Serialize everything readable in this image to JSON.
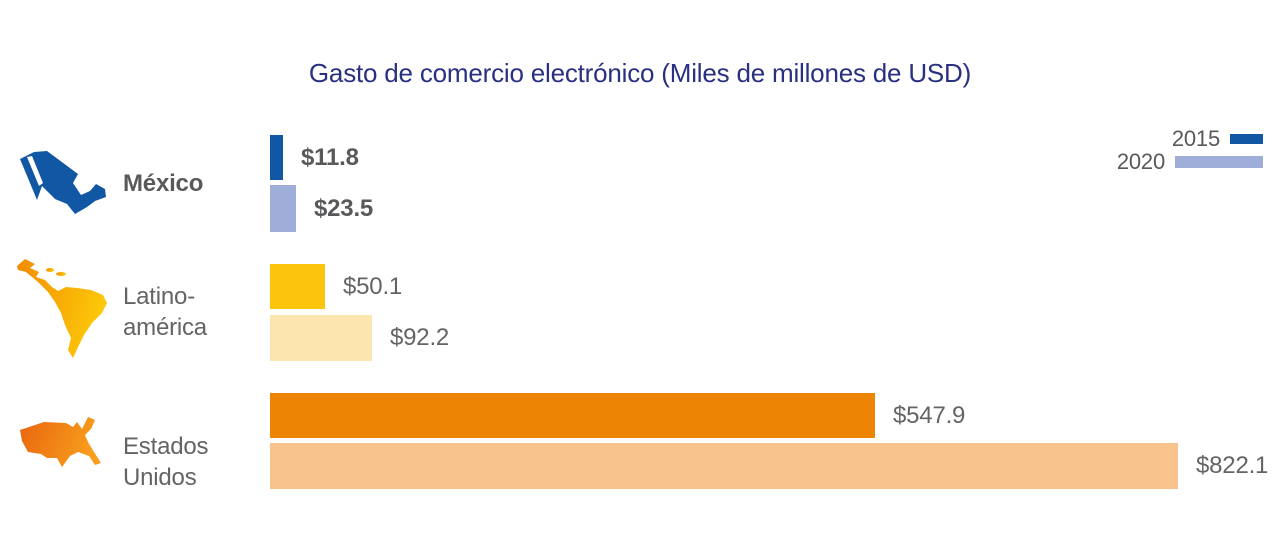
{
  "title": "Gasto de comercio electrónico (Miles de millones de USD)",
  "title_color": "#293180",
  "legend": [
    {
      "label": "2015",
      "color": "#1157A3"
    },
    {
      "label": "2020",
      "color": "#9FAED9"
    }
  ],
  "rows": [
    {
      "label_lines": [
        "México"
      ],
      "icon": "mexico-map"
    },
    {
      "label_lines": [
        "Latino-",
        "américa"
      ],
      "icon": "latam-map"
    },
    {
      "label_lines": [
        "Estados",
        "Unidos"
      ],
      "icon": "usa-map"
    }
  ],
  "chart_data": {
    "type": "bar",
    "orientation": "horizontal",
    "title": "Gasto de comercio electrónico (Miles de millones de USD)",
    "xlabel": "",
    "ylabel": "",
    "categories": [
      "México",
      "Latino-américa",
      "Estados Unidos"
    ],
    "series": [
      {
        "name": "2015",
        "values": [
          11.8,
          50.1,
          547.9
        ],
        "labels": [
          "$11.8",
          "$50.1",
          "$547.9"
        ],
        "colors": [
          "#1157A3",
          "#FBC40D",
          "#ED8403"
        ]
      },
      {
        "name": "2020",
        "values": [
          23.5,
          92.2,
          822.1
        ],
        "labels": [
          "$23.5",
          "$92.2",
          "$822.1"
        ],
        "colors": [
          "#9FAED9",
          "#FCE5AF",
          "#F8C28D"
        ]
      }
    ],
    "xlim": [
      0,
      822.1
    ],
    "grid": false,
    "legend_position": "top-right",
    "value_labels": "outside-end"
  }
}
